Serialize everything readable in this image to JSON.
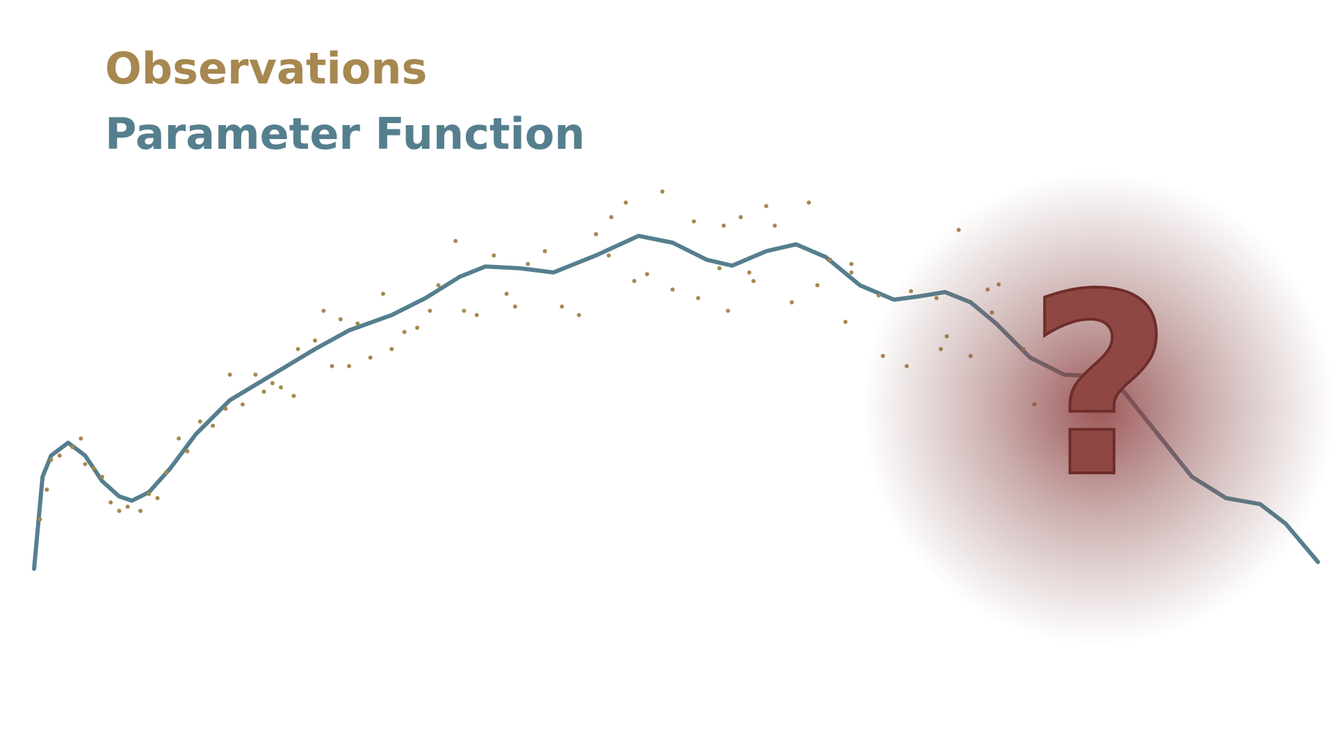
{
  "chart_data": {
    "type": "line",
    "xlim": [
      0,
      1568
    ],
    "ylim": [
      0,
      882
    ],
    "annotation": "?",
    "series": [
      {
        "name": "Observations",
        "type": "scatter",
        "color": "#a68850",
        "x": [
          47,
          55,
          60,
          70,
          85,
          95,
          100,
          110,
          120,
          130,
          140,
          150,
          165,
          175,
          185,
          195,
          210,
          220,
          235,
          250,
          265,
          270,
          285,
          300,
          310,
          320,
          330,
          345,
          350,
          370,
          380,
          390,
          400,
          410,
          420,
          435,
          450,
          460,
          475,
          490,
          505,
          515,
          535,
          545,
          560,
          580,
          595,
          605,
          620,
          640,
          660,
          680,
          700,
          715,
          718,
          735,
          745,
          760,
          778,
          790,
          815,
          820,
          850,
          855,
          870,
          880,
          900,
          910,
          930,
          950,
          960,
          975,
          993,
          1000,
          1037,
          1065,
          1070,
          1105,
          1112,
          1126,
          1140,
          1160,
          1173,
          1202,
          1215,
          1165,
          1032,
          1000,
          885,
          845,
          1100
        ],
        "values": [
          272,
          307,
          342,
          347,
          357,
          367,
          337,
          332,
          322,
          292,
          282,
          287,
          282,
          302,
          297,
          327,
          367,
          352,
          387,
          382,
          402,
          442,
          407,
          442,
          422,
          432,
          427,
          417,
          472,
          482,
          517,
          452,
          507,
          452,
          502,
          462,
          537,
          472,
          492,
          497,
          517,
          547,
          599,
          517,
          512,
          582,
          537,
          522,
          572,
          587,
          522,
          512,
          607,
          582,
          627,
          644,
          552,
          560,
          657,
          542,
          622,
          532,
          617,
          517,
          627,
          562,
          640,
          617,
          527,
          644,
          547,
          577,
          504,
          572,
          464,
          452,
          540,
          472,
          487,
          612,
          464,
          542,
          548,
          472,
          407,
          515,
          535,
          562,
          552,
          567,
          532
        ]
      },
      {
        "name": "Parameter Function",
        "type": "line",
        "color": "#557f8e",
        "x": [
          40,
          50,
          60,
          80,
          100,
          120,
          140,
          155,
          175,
          200,
          230,
          270,
          320,
          370,
          410,
          460,
          500,
          540,
          570,
          610,
          650,
          700,
          750,
          790,
          830,
          860,
          900,
          935,
          970,
          1010,
          1050,
          1080,
          1110,
          1140,
          1170,
          1210,
          1250,
          1290,
          1320,
          1360,
          1400,
          1440,
          1480,
          1510,
          1548
        ],
        "values": [
          214,
          322,
          347,
          362,
          347,
          317,
          299,
          294,
          304,
          332,
          372,
          412,
          442,
          472,
          494,
          512,
          532,
          557,
          569,
          567,
          562,
          582,
          605,
          597,
          577,
          570,
          587,
          595,
          580,
          547,
          530,
          534,
          539,
          527,
          502,
          462,
          442,
          440,
          422,
          372,
          322,
          297,
          290,
          267,
          222
        ]
      }
    ]
  }
}
